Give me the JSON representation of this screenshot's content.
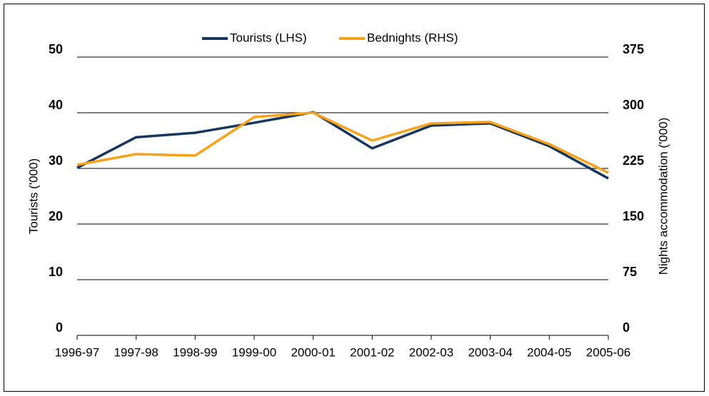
{
  "chart_data": {
    "type": "line",
    "categories": [
      "1996-97",
      "1997-98",
      "1998-99",
      "1999-00",
      "2000-01",
      "2001-02",
      "2002-03",
      "2003-04",
      "2004-05",
      "2005-06"
    ],
    "series": [
      {
        "name": "Tourists (LHS)",
        "color": "#17375e",
        "values": [
          30.1,
          35.6,
          36.4,
          38.2,
          40.1,
          33.6,
          37.7,
          38.1,
          34.0,
          28.2
        ]
      },
      {
        "name": "Bednights (RHS)",
        "color": "#f7a21b",
        "axis": "y2",
        "values": [
          229.8,
          244.2,
          242.3,
          294.2,
          300.0,
          262.5,
          285.6,
          287.5,
          257.7,
          219.2
        ]
      }
    ],
    "ylabel": "Tourists ('000)",
    "y2label": "Nights accommodation ('000)",
    "ylim": [
      0,
      50
    ],
    "yticks": [
      0,
      10,
      20,
      30,
      40,
      50
    ],
    "y2lim": [
      0,
      375
    ],
    "y2ticks": [
      0,
      75,
      150,
      225,
      300,
      375
    ],
    "grid": true,
    "legend": "top"
  }
}
